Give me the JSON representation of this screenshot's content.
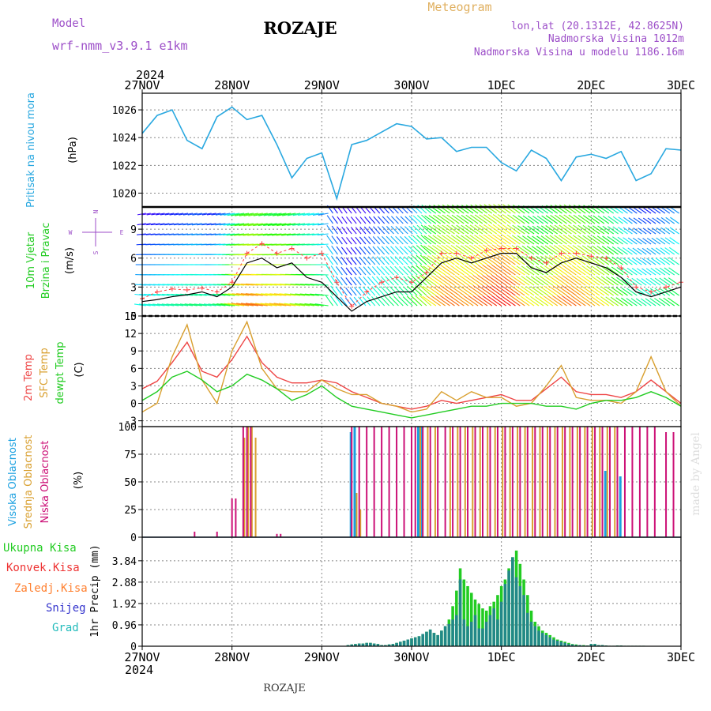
{
  "header": {
    "model_label": "Model",
    "model_name": "wrf-nmm_v3.9.1 e1km",
    "location_title": "ROZAJE",
    "product": "Meteogram",
    "coords": "lon,lat (20.1312E, 42.8625N)",
    "elevation": "Nadmorska Visina 1012m",
    "model_elevation": "Nadmorska Visina u modelu 1186.16m",
    "footer_title": "ROZAJE",
    "watermark": "made by Angel"
  },
  "colors": {
    "pressure": "#29a8e0",
    "wind_speed": "#000000",
    "gust": "#ff4040",
    "t2m": "#ee4444",
    "tsfc": "#d9a030",
    "dewpt": "#22cc22",
    "cloud_high": "#1aa0e0",
    "cloud_mid": "#d9a030",
    "cloud_low": "#cc1177",
    "precip_total": "#22cc22",
    "precip_conv": "#ee3333",
    "precip_frozen": "#ff8030",
    "precip_snow": "#3333cc",
    "precip_graupel": "#22bbbb",
    "model_label": "#9c4ec8",
    "product_label": "#e0b060"
  },
  "chart_data": [
    {
      "type": "line",
      "panel": "pressure",
      "ylabel": "Pritisak na nivou mora",
      "unit": "(hPa)",
      "yticks": [
        1020,
        1022,
        1024,
        1026
      ],
      "ylim": [
        1019,
        1027.2
      ],
      "x_top": {
        "year": "2024",
        "ticks": [
          "27NOV",
          "28NOV",
          "29NOV",
          "30NOV",
          "1DEC",
          "2DEC",
          "3DEC"
        ]
      },
      "x_hours": [
        0,
        4,
        8,
        12,
        16,
        20,
        24,
        28,
        32,
        36,
        40,
        44,
        48,
        52,
        56,
        60,
        64,
        68,
        72,
        76,
        80,
        84,
        88,
        92,
        96,
        100,
        104,
        108,
        112,
        116,
        120,
        124,
        128,
        132,
        136,
        140,
        144
      ],
      "values": [
        1024.3,
        1025.6,
        1026.0,
        1023.8,
        1023.2,
        1025.5,
        1026.2,
        1025.3,
        1025.6,
        1023.5,
        1021.1,
        1022.5,
        1022.9,
        1019.6,
        1023.5,
        1023.8,
        1024.4,
        1025.0,
        1024.8,
        1023.9,
        1024.0,
        1023.0,
        1023.3,
        1023.3,
        1022.2,
        1021.6,
        1023.1,
        1022.5,
        1020.9,
        1022.6,
        1022.8,
        1022.5,
        1023.0,
        1020.9,
        1021.4,
        1023.2,
        1023.1
      ]
    },
    {
      "type": "line",
      "panel": "wind",
      "ylabel": "10m Vjetar Brzina i Pravac",
      "unit": "(m/s)",
      "direction_labels": {
        "north": "N",
        "south": "S",
        "west": "W",
        "east": "E"
      },
      "yticks": [
        0,
        3,
        6,
        9
      ],
      "ylim": [
        0,
        11.3
      ],
      "x_hours": [
        0,
        4,
        8,
        12,
        16,
        20,
        24,
        28,
        32,
        36,
        40,
        44,
        48,
        52,
        56,
        60,
        64,
        68,
        72,
        76,
        80,
        84,
        88,
        92,
        96,
        100,
        104,
        108,
        112,
        116,
        120,
        124,
        128,
        132,
        136,
        140,
        144
      ],
      "series": [
        {
          "key": "speed",
          "values": [
            1.5,
            1.7,
            2.0,
            2.2,
            2.5,
            2.0,
            3.0,
            5.5,
            6.0,
            5.0,
            5.5,
            4.0,
            3.5,
            2.0,
            0.5,
            1.5,
            2.0,
            2.5,
            2.5,
            4.0,
            5.5,
            6.0,
            5.5,
            6.0,
            6.5,
            6.5,
            5.0,
            4.5,
            5.5,
            6.0,
            5.5,
            5.0,
            4.0,
            2.5,
            2.0,
            2.5,
            3.0
          ]
        },
        {
          "key": "gust",
          "values": [
            1.8,
            2.5,
            2.8,
            2.7,
            2.9,
            2.5,
            3.5,
            6.5,
            7.5,
            6.5,
            7.0,
            6.0,
            6.5,
            3.5,
            1.0,
            2.5,
            3.5,
            4.0,
            3.5,
            4.5,
            6.5,
            6.5,
            6.0,
            6.8,
            7.0,
            7.0,
            6.0,
            5.5,
            6.5,
            6.5,
            6.2,
            6.0,
            5.0,
            3.0,
            2.5,
            3.0,
            3.5
          ]
        }
      ]
    },
    {
      "type": "line",
      "panel": "temperature",
      "legend": [
        "2m Temp",
        "SFC Temp",
        "dewpt Temp"
      ],
      "unit": "(C)",
      "yticks": [
        -3,
        0,
        3,
        6,
        9,
        12,
        15
      ],
      "ylim": [
        -4,
        15
      ],
      "x_hours": [
        0,
        4,
        8,
        12,
        16,
        20,
        24,
        28,
        32,
        36,
        40,
        44,
        48,
        52,
        56,
        60,
        64,
        68,
        72,
        76,
        80,
        84,
        88,
        92,
        96,
        100,
        104,
        108,
        112,
        116,
        120,
        124,
        128,
        132,
        136,
        140,
        144
      ],
      "series": [
        {
          "key": "t2m",
          "values": [
            2.5,
            3.8,
            7.0,
            10.5,
            5.5,
            4.5,
            7.5,
            11.5,
            7.0,
            4.5,
            3.5,
            3.5,
            4.0,
            3.5,
            2.0,
            1.0,
            0.0,
            -0.5,
            -1.0,
            -0.5,
            0.5,
            0.0,
            0.5,
            1.0,
            1.5,
            0.5,
            0.5,
            2.5,
            4.5,
            2.0,
            1.5,
            1.5,
            1.0,
            2.0,
            4.0,
            2.0,
            0.0
          ]
        },
        {
          "key": "tsfc",
          "values": [
            -1.5,
            0.0,
            8.0,
            13.5,
            4.0,
            0.0,
            9.0,
            14.0,
            6.0,
            2.5,
            2.0,
            2.0,
            4.0,
            2.5,
            1.5,
            1.5,
            0.0,
            -0.5,
            -1.5,
            -1.0,
            2.0,
            0.5,
            2.0,
            1.0,
            1.0,
            -0.5,
            0.0,
            3.0,
            6.5,
            1.0,
            0.5,
            0.5,
            0.0,
            2.0,
            8.0,
            2.0,
            -0.5
          ]
        },
        {
          "key": "dewpt",
          "values": [
            0.5,
            2.0,
            4.5,
            5.5,
            4.0,
            2.0,
            3.0,
            5.0,
            4.0,
            2.5,
            0.5,
            1.5,
            3.0,
            1.0,
            -0.5,
            -1.0,
            -1.5,
            -2.0,
            -2.5,
            -2.0,
            -1.5,
            -1.0,
            -0.5,
            -0.5,
            0.0,
            0.0,
            0.0,
            -0.5,
            -0.5,
            -1.0,
            0.0,
            0.5,
            0.5,
            1.0,
            2.0,
            1.0,
            -0.5
          ]
        }
      ]
    },
    {
      "type": "bar",
      "panel": "clouds",
      "legend": [
        "Visoka Oblacnost",
        "Srednja Oblacnost",
        "Niska Oblacnost"
      ],
      "unit": "(%)",
      "yticks": [
        0,
        25,
        50,
        75,
        100
      ],
      "ylim": [
        0,
        100
      ],
      "series": [
        {
          "key": "high",
          "bars": [
            [
              56,
              95
            ],
            [
              57,
              100
            ],
            [
              74,
              100
            ],
            [
              75,
              100
            ],
            [
              124,
              60
            ],
            [
              128,
              55
            ]
          ]
        },
        {
          "key": "mid",
          "bars": [
            [
              27,
              90
            ],
            [
              28,
              100
            ],
            [
              29,
              100
            ],
            [
              30,
              90
            ],
            [
              57,
              40
            ],
            [
              58,
              25
            ],
            [
              74,
              100
            ],
            [
              76,
              100
            ],
            [
              78,
              100
            ],
            [
              82,
              100
            ],
            [
              84,
              100
            ],
            [
              86,
              100
            ],
            [
              88,
              100
            ],
            [
              90,
              100
            ],
            [
              92,
              100
            ],
            [
              94,
              100
            ],
            [
              96,
              100
            ],
            [
              98,
              100
            ],
            [
              100,
              100
            ],
            [
              102,
              100
            ],
            [
              104,
              100
            ],
            [
              106,
              100
            ],
            [
              108,
              100
            ],
            [
              110,
              100
            ],
            [
              112,
              100
            ],
            [
              114,
              100
            ],
            [
              116,
              100
            ],
            [
              118,
              100
            ],
            [
              120,
              100
            ],
            [
              122,
              100
            ],
            [
              124,
              100
            ],
            [
              126,
              100
            ]
          ]
        },
        {
          "key": "low",
          "bars": [
            [
              14,
              5
            ],
            [
              20,
              5
            ],
            [
              24,
              35
            ],
            [
              25,
              35
            ],
            [
              27,
              100
            ],
            [
              28,
              100
            ],
            [
              29,
              100
            ],
            [
              36,
              3
            ],
            [
              37,
              3
            ],
            [
              56,
              100
            ],
            [
              58,
              100
            ],
            [
              60,
              100
            ],
            [
              62,
              100
            ],
            [
              64,
              100
            ],
            [
              66,
              100
            ],
            [
              68,
              100
            ],
            [
              70,
              100
            ],
            [
              72,
              100
            ],
            [
              73,
              100
            ],
            [
              75,
              100
            ],
            [
              77,
              100
            ],
            [
              79,
              100
            ],
            [
              81,
              100
            ],
            [
              83,
              100
            ],
            [
              85,
              100
            ],
            [
              87,
              100
            ],
            [
              89,
              100
            ],
            [
              91,
              100
            ],
            [
              93,
              100
            ],
            [
              95,
              100
            ],
            [
              97,
              100
            ],
            [
              99,
              100
            ],
            [
              101,
              100
            ],
            [
              103,
              100
            ],
            [
              105,
              100
            ],
            [
              107,
              100
            ],
            [
              109,
              100
            ],
            [
              111,
              100
            ],
            [
              113,
              100
            ],
            [
              115,
              100
            ],
            [
              117,
              100
            ],
            [
              119,
              100
            ],
            [
              121,
              100
            ],
            [
              123,
              100
            ],
            [
              125,
              100
            ],
            [
              127,
              100
            ],
            [
              129,
              100
            ],
            [
              131,
              100
            ],
            [
              133,
              100
            ],
            [
              135,
              100
            ],
            [
              137,
              100
            ],
            [
              140,
              95
            ],
            [
              142,
              95
            ]
          ]
        }
      ]
    },
    {
      "type": "bar",
      "panel": "precipitation",
      "legend": [
        "Ukupna Kisa",
        "Konvek.Kisa",
        "Zaledj.Kisa",
        "Snijeg",
        "Grad"
      ],
      "ylabel": "1hr Precip (mm)",
      "yticks": [
        0,
        0.96,
        1.92,
        2.88,
        3.84
      ],
      "ylim": [
        0,
        4.9
      ],
      "x_bottom": {
        "year": "2024",
        "ticks": [
          "27NOV",
          "28NOV",
          "29NOV",
          "30NOV",
          "1DEC",
          "2DEC",
          "3DEC"
        ]
      },
      "hours": [
        55,
        56,
        57,
        58,
        59,
        60,
        61,
        62,
        63,
        64,
        65,
        66,
        67,
        68,
        69,
        70,
        71,
        72,
        73,
        74,
        75,
        76,
        77,
        78,
        79,
        80,
        81,
        82,
        83,
        84,
        85,
        86,
        87,
        88,
        89,
        90,
        91,
        92,
        93,
        94,
        95,
        96,
        97,
        98,
        99,
        100,
        101,
        102,
        103,
        104,
        105,
        106,
        107,
        108,
        109,
        110,
        111,
        112,
        113,
        114,
        115,
        116,
        117,
        118,
        119,
        120,
        121,
        122,
        123,
        124,
        125,
        126,
        127,
        128,
        129,
        130,
        131,
        132,
        133,
        134
      ],
      "total": [
        0.05,
        0.08,
        0.1,
        0.12,
        0.12,
        0.15,
        0.15,
        0.12,
        0.1,
        0.05,
        0.05,
        0.08,
        0.1,
        0.15,
        0.2,
        0.25,
        0.3,
        0.35,
        0.4,
        0.45,
        0.55,
        0.65,
        0.75,
        0.6,
        0.5,
        0.7,
        0.9,
        1.2,
        1.8,
        2.5,
        3.5,
        3.0,
        2.7,
        2.4,
        2.1,
        1.9,
        1.7,
        1.6,
        1.8,
        2.0,
        2.3,
        2.7,
        3.0,
        3.5,
        4.0,
        4.3,
        3.7,
        3.0,
        2.3,
        1.6,
        1.1,
        0.9,
        0.7,
        0.6,
        0.5,
        0.4,
        0.3,
        0.25,
        0.2,
        0.15,
        0.1,
        0.08,
        0.05,
        0.05,
        0.03,
        0.1,
        0.1,
        0.05,
        0.05,
        0.03,
        0.02,
        0.02,
        0.03,
        0.03,
        0.02,
        0.02,
        0.02,
        0.02,
        0.02,
        0.02
      ],
      "snow": [
        0.05,
        0.08,
        0.1,
        0.12,
        0.12,
        0.15,
        0.15,
        0.12,
        0.1,
        0.05,
        0.05,
        0.08,
        0.1,
        0.15,
        0.2,
        0.25,
        0.3,
        0.35,
        0.4,
        0.45,
        0.55,
        0.65,
        0.75,
        0.6,
        0.5,
        0.7,
        0.9,
        1.0,
        1.2,
        1.4,
        3.0,
        1.2,
        0.9,
        1.1,
        1.4,
        0.8,
        0.8,
        1.1,
        1.4,
        1.7,
        1.2,
        2.0,
        2.8,
        3.4,
        4.0,
        3.1,
        2.7,
        2.3,
        1.5,
        1.1,
        0.9,
        0.7,
        0.6,
        0.5,
        0.4,
        0.3,
        0.25,
        0.2,
        0.15,
        0.1,
        0.08,
        0.05,
        0.05,
        0.03,
        0.03,
        0.1,
        0.1,
        0.05,
        0.05,
        0.03,
        0.02,
        0.02,
        0.03,
        0.03,
        0.02,
        0.02,
        0.02,
        0.02,
        0.02,
        0.02
      ]
    }
  ]
}
